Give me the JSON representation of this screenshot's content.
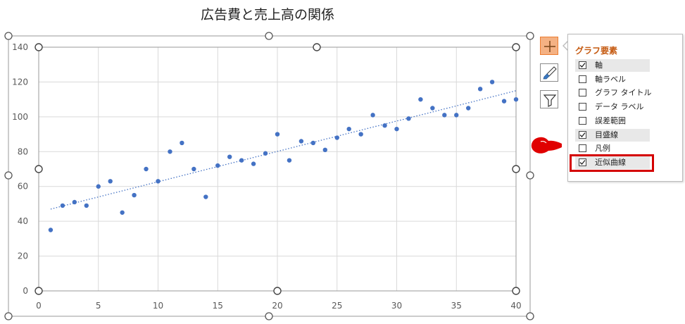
{
  "chart_data": {
    "type": "scatter",
    "title": "広告費と売上高の関係",
    "xlim": [
      0,
      40
    ],
    "ylim": [
      0,
      140
    ],
    "x_ticks": [
      "0",
      "5",
      "10",
      "15",
      "20",
      "25",
      "30",
      "35",
      "40"
    ],
    "y_ticks": [
      "0",
      "20",
      "40",
      "60",
      "80",
      "100",
      "120",
      "140"
    ],
    "grid": true,
    "legend": "none",
    "marker_color": "#4472c4",
    "trendline": {
      "type": "linear",
      "style": "dotted",
      "color": "#4472c4",
      "x": [
        1,
        40
      ],
      "y": [
        47,
        115
      ]
    },
    "points": [
      [
        1,
        35
      ],
      [
        2,
        49
      ],
      [
        3,
        51
      ],
      [
        4,
        49
      ],
      [
        5,
        60
      ],
      [
        6,
        63
      ],
      [
        7,
        45
      ],
      [
        8,
        55
      ],
      [
        9,
        70
      ],
      [
        10,
        63
      ],
      [
        11,
        80
      ],
      [
        12,
        85
      ],
      [
        13,
        70
      ],
      [
        14,
        54
      ],
      [
        15,
        72
      ],
      [
        16,
        77
      ],
      [
        17,
        75
      ],
      [
        18,
        73
      ],
      [
        19,
        79
      ],
      [
        20,
        90
      ],
      [
        21,
        75
      ],
      [
        22,
        86
      ],
      [
        23,
        85
      ],
      [
        24,
        81
      ],
      [
        25,
        88
      ],
      [
        26,
        93
      ],
      [
        27,
        90
      ],
      [
        28,
        101
      ],
      [
        29,
        95
      ],
      [
        30,
        93
      ],
      [
        31,
        99
      ],
      [
        32,
        110
      ],
      [
        33,
        105
      ],
      [
        34,
        101
      ],
      [
        35,
        101
      ],
      [
        36,
        105
      ],
      [
        37,
        116
      ],
      [
        38,
        120
      ],
      [
        39,
        109
      ],
      [
        40,
        110
      ]
    ]
  },
  "elements_panel": {
    "title": "グラフ要素",
    "items": [
      {
        "label": "軸",
        "checked": true,
        "shaded": true
      },
      {
        "label": "軸ラベル",
        "checked": false,
        "shaded": false
      },
      {
        "label": "グラフ タイトル",
        "checked": false,
        "shaded": false
      },
      {
        "label": "データ ラベル",
        "checked": false,
        "shaded": false
      },
      {
        "label": "誤差範囲",
        "checked": false,
        "shaded": false
      },
      {
        "label": "目盛線",
        "checked": true,
        "shaded": true
      },
      {
        "label": "凡例",
        "checked": false,
        "shaded": false
      },
      {
        "label": "近似曲線",
        "checked": true,
        "shaded": true
      }
    ]
  },
  "side_buttons": [
    {
      "icon": "plus-icon",
      "active": true
    },
    {
      "icon": "brush-icon",
      "active": false
    },
    {
      "icon": "filter-icon",
      "active": false
    }
  ],
  "colors": {
    "accent": "#ed7d31",
    "highlight": "#d40000",
    "marker": "#4472c4"
  }
}
